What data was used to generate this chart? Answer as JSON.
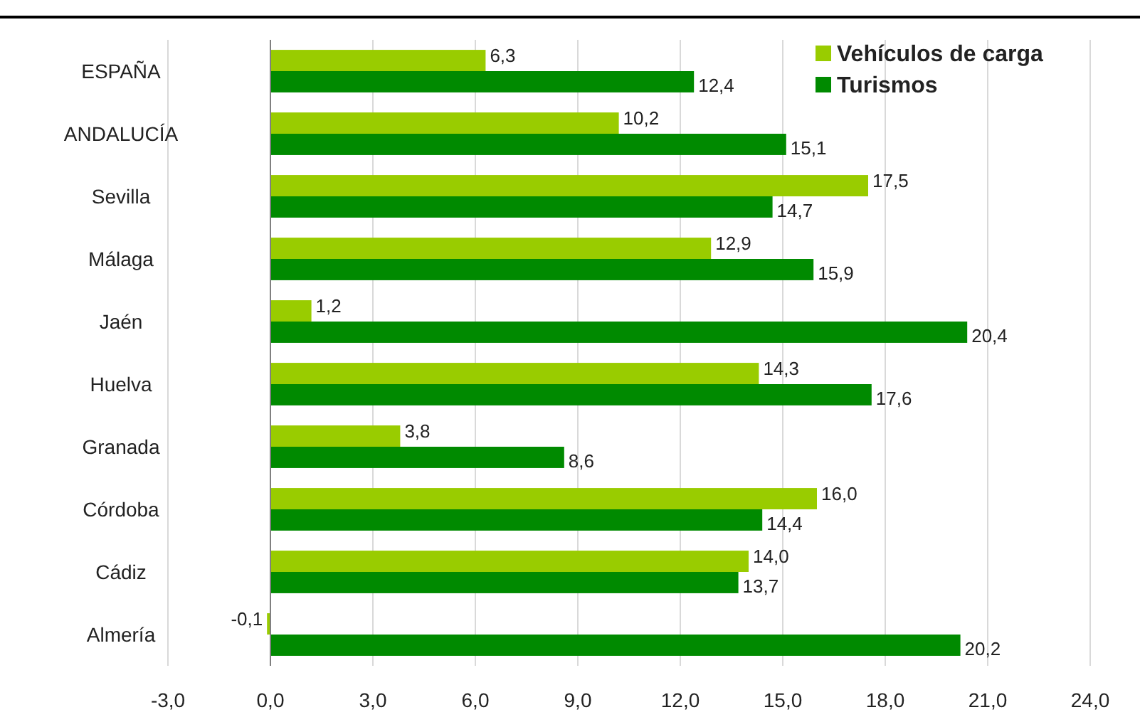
{
  "chart_data": {
    "type": "bar",
    "orientation": "horizontal",
    "categories": [
      "ESPAÑA",
      "ANDALUCÍA",
      "Sevilla",
      "Málaga",
      "Jaén",
      "Huelva",
      "Granada",
      "Córdoba",
      "Cádiz",
      "Almería"
    ],
    "series": [
      {
        "name": "Vehículos de carga",
        "color": "#99cc00",
        "values": [
          6.3,
          10.2,
          17.5,
          12.9,
          1.2,
          14.3,
          3.8,
          16.0,
          14.0,
          -0.1
        ],
        "value_labels": [
          "6,3",
          "10,2",
          "17,5",
          "12,9",
          "1,2",
          "14,3",
          "3,8",
          "16,0",
          "14,0",
          "-0,1"
        ]
      },
      {
        "name": "Turismos",
        "color": "#008a00",
        "values": [
          12.4,
          15.1,
          14.7,
          15.9,
          20.4,
          17.6,
          8.6,
          14.4,
          13.7,
          20.2
        ],
        "value_labels": [
          "12,4",
          "15,1",
          "14,7",
          "15,9",
          "20,4",
          "17,6",
          "8,6",
          "14,4",
          "13,7",
          "20,2"
        ]
      }
    ],
    "xlim": [
      -3,
      24
    ],
    "xticks": [
      {
        "value": -3,
        "label": "-3,0"
      },
      {
        "value": 0,
        "label": "0,0"
      },
      {
        "value": 3,
        "label": "3,0"
      },
      {
        "value": 6,
        "label": "6,0"
      },
      {
        "value": 9,
        "label": "9,0"
      },
      {
        "value": 12,
        "label": "12,0"
      },
      {
        "value": 15,
        "label": "15,0"
      },
      {
        "value": 18,
        "label": "18,0"
      },
      {
        "value": 21,
        "label": "21,0"
      },
      {
        "value": 24,
        "label": "24,0"
      }
    ],
    "grid": "x",
    "legend": "top right"
  }
}
